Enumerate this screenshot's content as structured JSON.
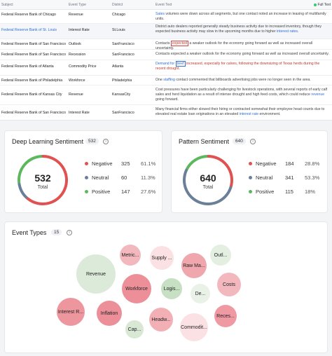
{
  "table": {
    "headers": {
      "subject": "Subject",
      "event_type": "Event Type",
      "district": "District",
      "event_text": "Event Text",
      "full_text": "Full Text"
    },
    "rows": [
      {
        "subject": "Federal Reserve Bank of Chicago",
        "event_type": "Revenue",
        "district": "Chicago",
        "t1": "Sales",
        "t2": " volumes were down across all segments, but one contact noted an increase in leasing of multifamily units."
      },
      {
        "subject": "Federal Reserve Bank of St. Louis",
        "event_type": "Interest Rate",
        "district": "St.Louis",
        "t1": "District auto dealers reported generally steady business activity due to increased inventory, though they expected business activity may slow in the upcoming months due to higher ",
        "t2": "interest rates",
        "t3": "."
      },
      {
        "subject": "Federal Reserve Bank of San Francisco",
        "event_type": "Outlook",
        "district": "SanFrancisco",
        "t1": "Contacts ",
        "t2": "expected",
        "t3": " a weaker outlook for the economy going forward as well as increased overall uncertainty."
      },
      {
        "subject": "Federal Reserve Bank of San Francisco",
        "event_type": "Recession",
        "district": "SanFrancisco",
        "t1": "Contacts expected a weaker outlook for the economy going forward as well as increased overall uncertainty."
      },
      {
        "subject": "Federal Reserve Bank of Atlanta",
        "event_type": "Commodity Price",
        "district": "Atlanta",
        "t1": "Demand for ",
        "t2": "beef",
        "t3": " increased, especially for calves, following the downsizing of Texas herds during the recent drought."
      },
      {
        "subject": "Federal Reserve Bank of Philadelphia",
        "event_type": "Workforce",
        "district": "Philadelphia",
        "t1": "One ",
        "t2": "staffing",
        "t3": " contact commented that billboards advertising jobs were no longer seen in the area."
      },
      {
        "subject": "Federal Reserve Bank of Kansas City",
        "event_type": "Revenue",
        "district": "KansasCity",
        "t1": "Cost pressures have been particularly challenging for livestock operations, with several reports of early calf sales and herd liquidation as a result of intense drought and high feed costs, which could reduce ",
        "t2": "revenue",
        "t3": " going forward."
      },
      {
        "subject": "Federal Reserve Bank of San Francisco",
        "event_type": "Interest Rate",
        "district": "SanFrancisco",
        "t1": "Many financial firms either slowed their hiring or contracted somewhat their employee head counts due to elevated real estate loan originations in an elevated ",
        "t2": "interest rate",
        "t3": " environment."
      }
    ]
  },
  "deep_learning": {
    "title": "Deep Learning Sentiment",
    "count": "532",
    "total_value": "532",
    "total_label": "Total",
    "items": [
      {
        "label": "Negative",
        "count": "325",
        "pct": "61.1%"
      },
      {
        "label": "Neutral",
        "count": "60",
        "pct": "11.3%"
      },
      {
        "label": "Positive",
        "count": "147",
        "pct": "27.6%"
      }
    ],
    "fractions": [
      0.611,
      0.113,
      0.276
    ]
  },
  "pattern": {
    "title": "Pattern Sentiment",
    "count": "640",
    "total_value": "640",
    "total_label": "Total",
    "items": [
      {
        "label": "Negative",
        "count": "184",
        "pct": "28.8%"
      },
      {
        "label": "Neutral",
        "count": "341",
        "pct": "53.3%"
      },
      {
        "label": "Positive",
        "count": "115",
        "pct": "18%"
      }
    ],
    "fractions": [
      0.288,
      0.533,
      0.18
    ]
  },
  "colors": {
    "negative": "#e05252",
    "neutral": "#6b7f99",
    "positive": "#5cb85c"
  },
  "event_types": {
    "title": "Event Types",
    "count": "15",
    "bubbles": [
      "Revenue",
      "Metric...",
      "Supply ...",
      "Raw Ma...",
      "Outl...",
      "Workforce",
      "Logis...",
      "De...",
      "Costs",
      "Interest R...",
      "Inflation",
      "Headw...",
      "Commodit...",
      "Reces...",
      "Cap..."
    ]
  }
}
